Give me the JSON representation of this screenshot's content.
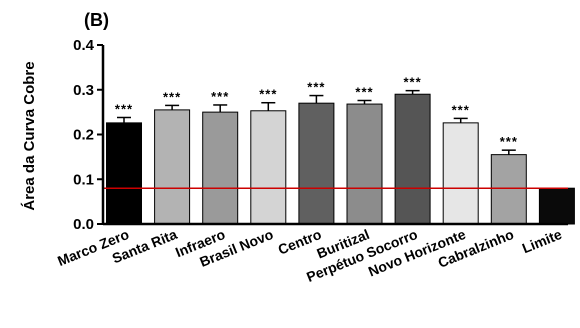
{
  "chart_data": {
    "type": "bar",
    "panel_label": "(B)",
    "ylabel": "Área da Curva Cobre",
    "ylim": [
      0,
      0.4
    ],
    "yticks": [
      "0.0",
      "0.1",
      "0.2",
      "0.3",
      "0.4"
    ],
    "categories": [
      "Marco Zero",
      "Santa Rita",
      "Infraero",
      "Brasil Novo",
      "Centro",
      "Buritizal",
      "Perpétuo Socorro",
      "Novo Horizonte",
      "Cabralzinho",
      "Limite"
    ],
    "values": [
      0.226,
      0.255,
      0.25,
      0.253,
      0.27,
      0.268,
      0.29,
      0.226,
      0.155,
      0.08
    ],
    "errors": [
      0.012,
      0.01,
      0.016,
      0.018,
      0.017,
      0.008,
      0.008,
      0.01,
      0.01,
      0
    ],
    "significance": [
      "***",
      "***",
      "***",
      "***",
      "***",
      "***",
      "***",
      "***",
      "***",
      ""
    ],
    "bar_colors": [
      "#000000",
      "#b3b3b3",
      "#9a9a9a",
      "#d4d4d4",
      "#606060",
      "#8c8c8c",
      "#555555",
      "#e6e6e6",
      "#a3a3a3",
      "#0a0a0a"
    ],
    "reference_line": {
      "value": 0.08,
      "color": "#cc0000"
    },
    "grid": false
  }
}
